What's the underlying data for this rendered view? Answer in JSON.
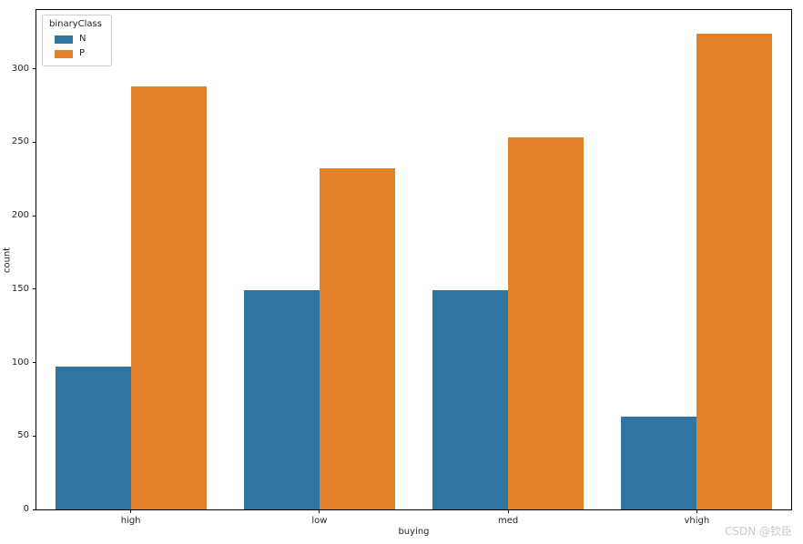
{
  "figure": {
    "background": "#ffffff",
    "watermark": "CSDN @钦臣"
  },
  "chart_data": {
    "type": "bar",
    "title": "",
    "categories": [
      "high",
      "low",
      "med",
      "vhigh"
    ],
    "series": [
      {
        "name": "N",
        "color": "#3274a1",
        "values": [
          97,
          149,
          149,
          63
        ]
      },
      {
        "name": "P",
        "color": "#e1812c",
        "values": [
          288,
          232,
          253,
          324
        ]
      }
    ],
    "xlabel": "buying",
    "ylabel": "count",
    "y_ticks": [
      0,
      50,
      100,
      150,
      200,
      250,
      300
    ],
    "ylim": [
      0,
      340
    ],
    "grid": false,
    "legend": {
      "title": "binaryClass",
      "position": "upper-left"
    },
    "bar_group_width_fraction": 0.8,
    "axis_color": "#000000",
    "tick_label_color": "#262626"
  }
}
